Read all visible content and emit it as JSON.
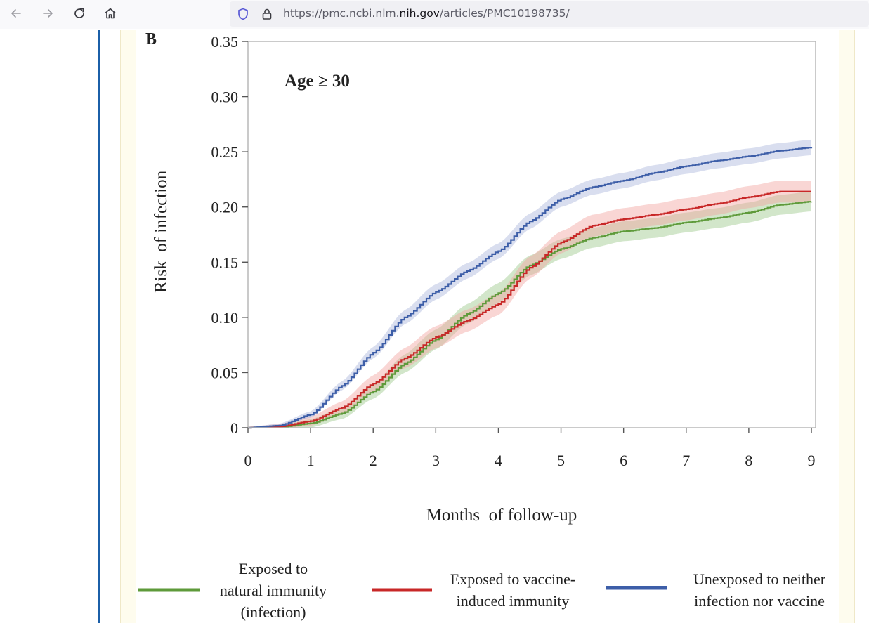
{
  "browser": {
    "url_prefix": "https://pmc.ncbi.nlm.",
    "url_domain": "nih.gov",
    "url_path": "/articles/PMC10198735/"
  },
  "figure": {
    "panel_label": "B",
    "annotation": "Age ≥ 30"
  },
  "chart_data": {
    "type": "line",
    "step": true,
    "title": "",
    "xlabel": "Months  of follow-up",
    "ylabel": "Risk  of infection",
    "xlim": [
      0,
      9
    ],
    "ylim": [
      0,
      0.35
    ],
    "x_ticks": [
      "0",
      "1",
      "2",
      "3",
      "4",
      "5",
      "6",
      "7",
      "8",
      "9"
    ],
    "y_ticks": [
      "0",
      "0.05",
      "0.10",
      "0.15",
      "0.20",
      "0.25",
      "0.30",
      "0.35"
    ],
    "grid": false,
    "legend_position": "bottom",
    "x": [
      0,
      0.5,
      1,
      1.5,
      2,
      2.5,
      3,
      3.5,
      4,
      4.5,
      5,
      5.5,
      6,
      6.5,
      7,
      7.5,
      8,
      8.5,
      9
    ],
    "series": [
      {
        "name": "Exposed to natural immunity (infection)",
        "color": "#5e9a3a",
        "band_color": "#9cc78a",
        "values": [
          0,
          0.0005,
          0.004,
          0.013,
          0.033,
          0.058,
          0.08,
          0.103,
          0.122,
          0.147,
          0.162,
          0.172,
          0.178,
          0.181,
          0.186,
          0.19,
          0.195,
          0.202,
          0.205
        ],
        "band_halfwidth": 0.009
      },
      {
        "name": "Exposed to vaccine-induced immunity",
        "color": "#c82828",
        "band_color": "#f2a4a0",
        "values": [
          0,
          0.001,
          0.006,
          0.018,
          0.04,
          0.063,
          0.082,
          0.097,
          0.112,
          0.145,
          0.168,
          0.183,
          0.189,
          0.193,
          0.198,
          0.203,
          0.209,
          0.214,
          0.214
        ],
        "band_halfwidth": 0.01
      },
      {
        "name": "Unexposed to neither infection nor vaccine",
        "color": "#3d5ea8",
        "band_color": "#aab6dc",
        "values": [
          0,
          0.002,
          0.012,
          0.038,
          0.068,
          0.1,
          0.123,
          0.142,
          0.16,
          0.187,
          0.207,
          0.218,
          0.224,
          0.231,
          0.237,
          0.242,
          0.246,
          0.251,
          0.254
        ],
        "band_halfwidth": 0.007
      }
    ],
    "legend": [
      {
        "lines": [
          "Exposed to",
          "natural immunity",
          "(infection)"
        ],
        "color": "#5e9a3a"
      },
      {
        "lines": [
          "Exposed to vaccine-",
          "induced immunity"
        ],
        "color": "#c82828"
      },
      {
        "lines": [
          "Unexposed to neither",
          "infection nor vaccine"
        ],
        "color": "#3d5ea8"
      }
    ]
  }
}
